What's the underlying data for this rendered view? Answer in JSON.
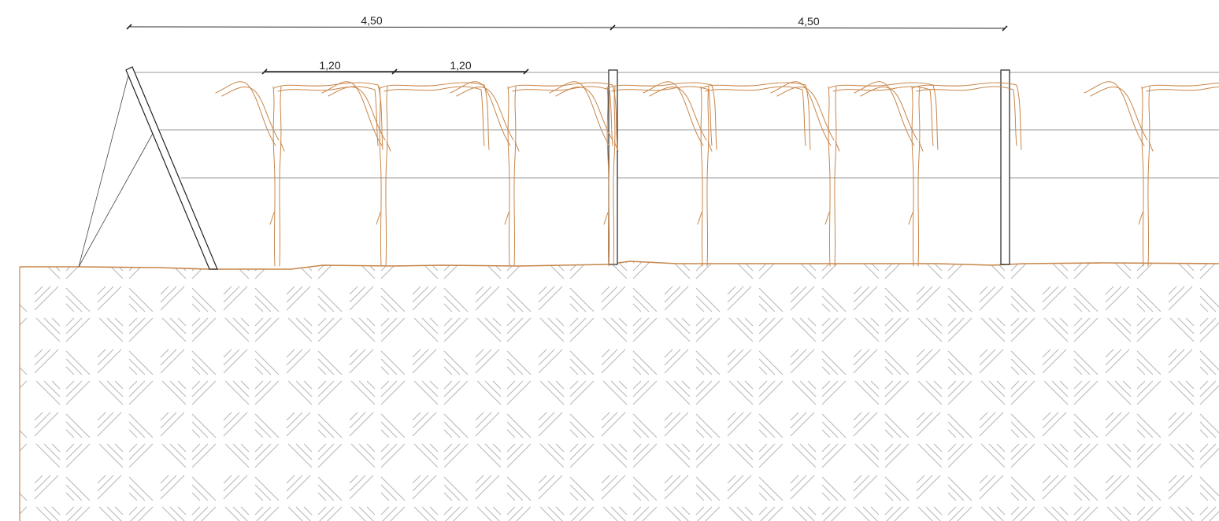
{
  "diagram": {
    "dimensions": {
      "post_spacing_1": "4,50",
      "post_spacing_2": "4,50",
      "vine_spacing_1": "1,20",
      "vine_spacing_2": "1,20"
    },
    "colors": {
      "vine": "#c8864a",
      "soil_edge": "#c8864a",
      "soil_hatch": "#b4b4b4",
      "wire": "#9a9a9a",
      "ink": "#222222"
    },
    "elements": {
      "trellis_wires": 3,
      "intermediate_posts": 2,
      "end_post": "inclined",
      "vines": 8
    }
  }
}
